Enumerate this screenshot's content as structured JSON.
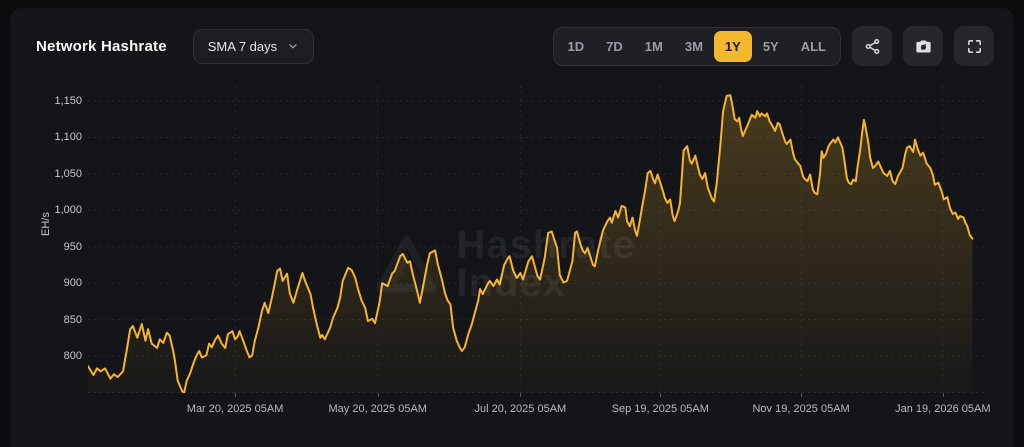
{
  "header": {
    "title": "Network Hashrate",
    "dropdown": {
      "selected": "SMA 7 days"
    },
    "ranges": [
      {
        "label": "1D",
        "active": false
      },
      {
        "label": "7D",
        "active": false
      },
      {
        "label": "1M",
        "active": false
      },
      {
        "label": "3M",
        "active": false
      },
      {
        "label": "1Y",
        "active": true
      },
      {
        "label": "5Y",
        "active": false
      },
      {
        "label": "ALL",
        "active": false
      }
    ],
    "icon_buttons": [
      "share-icon",
      "camera-icon",
      "fullscreen-icon"
    ]
  },
  "colors": {
    "accent": "#F2B92E",
    "line": "#F6B42C",
    "card_bg": "#141519",
    "page_bg": "#0a0b0d"
  },
  "watermark": {
    "line1": "Hashrate",
    "line2": "Index"
  },
  "chart_data": {
    "type": "line",
    "title": "Network Hashrate",
    "ylabel": "EH/s",
    "unit": "EH/s",
    "line_color": "#F6B42C",
    "fill_color": "#F0B42C",
    "grid": "dashed",
    "legend_position": "none",
    "ylim": [
      750,
      1170
    ],
    "y_axis": {
      "ticks": [
        800,
        850,
        900,
        950,
        1000,
        1050,
        1100,
        1150
      ]
    },
    "x_axis": {
      "note": "f = fractional position along the 1Y time axis",
      "ticks": [
        {
          "f": 0.164,
          "label": "Mar 20, 2025 05AM"
        },
        {
          "f": 0.323,
          "label": "May 20, 2025 05AM"
        },
        {
          "f": 0.482,
          "label": "Jul 20, 2025 05AM"
        },
        {
          "f": 0.638,
          "label": "Sep 19, 2025 05AM"
        },
        {
          "f": 0.795,
          "label": "Nov 19, 2025 05AM"
        },
        {
          "f": 0.953,
          "label": "Jan 19, 2026 05AM"
        }
      ]
    },
    "series": [
      {
        "name": "Network Hashrate (SMA 7 days), EH/s",
        "points": [
          [
            0.0,
            786
          ],
          [
            0.006,
            774
          ],
          [
            0.01,
            783
          ],
          [
            0.014,
            779
          ],
          [
            0.019,
            783
          ],
          [
            0.025,
            769
          ],
          [
            0.029,
            775
          ],
          [
            0.033,
            771
          ],
          [
            0.039,
            779
          ],
          [
            0.043,
            807
          ],
          [
            0.047,
            837
          ],
          [
            0.05,
            841
          ],
          [
            0.055,
            825
          ],
          [
            0.06,
            844
          ],
          [
            0.064,
            821
          ],
          [
            0.067,
            837
          ],
          [
            0.071,
            817
          ],
          [
            0.077,
            811
          ],
          [
            0.08,
            823
          ],
          [
            0.084,
            818
          ],
          [
            0.088,
            832
          ],
          [
            0.091,
            828
          ],
          [
            0.095,
            807
          ],
          [
            0.097,
            793
          ],
          [
            0.1,
            766
          ],
          [
            0.105,
            752
          ],
          [
            0.107,
            749
          ],
          [
            0.11,
            766
          ],
          [
            0.114,
            777
          ],
          [
            0.117,
            788
          ],
          [
            0.12,
            798
          ],
          [
            0.124,
            807
          ],
          [
            0.127,
            798
          ],
          [
            0.132,
            801
          ],
          [
            0.135,
            817
          ],
          [
            0.138,
            812
          ],
          [
            0.142,
            823
          ],
          [
            0.145,
            828
          ],
          [
            0.149,
            817
          ],
          [
            0.153,
            811
          ],
          [
            0.156,
            830
          ],
          [
            0.161,
            834
          ],
          [
            0.164,
            823
          ],
          [
            0.167,
            827
          ],
          [
            0.169,
            834
          ],
          [
            0.173,
            821
          ],
          [
            0.177,
            807
          ],
          [
            0.18,
            798
          ],
          [
            0.183,
            801
          ],
          [
            0.186,
            821
          ],
          [
            0.19,
            839
          ],
          [
            0.194,
            862
          ],
          [
            0.197,
            873
          ],
          [
            0.201,
            859
          ],
          [
            0.205,
            880
          ],
          [
            0.211,
            917
          ],
          [
            0.214,
            920
          ],
          [
            0.217,
            903
          ],
          [
            0.222,
            913
          ],
          [
            0.225,
            886
          ],
          [
            0.229,
            873
          ],
          [
            0.233,
            890
          ],
          [
            0.239,
            914
          ],
          [
            0.242,
            903
          ],
          [
            0.248,
            885
          ],
          [
            0.251,
            866
          ],
          [
            0.255,
            844
          ],
          [
            0.259,
            825
          ],
          [
            0.261,
            829
          ],
          [
            0.264,
            823
          ],
          [
            0.27,
            839
          ],
          [
            0.273,
            852
          ],
          [
            0.278,
            866
          ],
          [
            0.281,
            880
          ],
          [
            0.284,
            903
          ],
          [
            0.29,
            921
          ],
          [
            0.294,
            918
          ],
          [
            0.298,
            907
          ],
          [
            0.301,
            892
          ],
          [
            0.305,
            876
          ],
          [
            0.309,
            866
          ],
          [
            0.312,
            848
          ],
          [
            0.317,
            851
          ],
          [
            0.32,
            845
          ],
          [
            0.323,
            862
          ],
          [
            0.325,
            873
          ],
          [
            0.328,
            900
          ],
          [
            0.331,
            898
          ],
          [
            0.334,
            896
          ],
          [
            0.339,
            913
          ],
          [
            0.342,
            917
          ],
          [
            0.348,
            937
          ],
          [
            0.351,
            940
          ],
          [
            0.356,
            928
          ],
          [
            0.359,
            930
          ],
          [
            0.362,
            913
          ],
          [
            0.367,
            889
          ],
          [
            0.37,
            873
          ],
          [
            0.373,
            892
          ],
          [
            0.378,
            925
          ],
          [
            0.381,
            941
          ],
          [
            0.387,
            945
          ],
          [
            0.39,
            926
          ],
          [
            0.395,
            903
          ],
          [
            0.398,
            886
          ],
          [
            0.401,
            876
          ],
          [
            0.404,
            871
          ],
          [
            0.407,
            839
          ],
          [
            0.411,
            821
          ],
          [
            0.415,
            810
          ],
          [
            0.417,
            807
          ],
          [
            0.42,
            812
          ],
          [
            0.424,
            830
          ],
          [
            0.428,
            844
          ],
          [
            0.431,
            858
          ],
          [
            0.435,
            876
          ],
          [
            0.437,
            892
          ],
          [
            0.44,
            885
          ],
          [
            0.446,
            900
          ],
          [
            0.448,
            903
          ],
          [
            0.452,
            896
          ],
          [
            0.456,
            905
          ],
          [
            0.459,
            898
          ],
          [
            0.464,
            925
          ],
          [
            0.468,
            934
          ],
          [
            0.47,
            937
          ],
          [
            0.474,
            917
          ],
          [
            0.478,
            907
          ],
          [
            0.482,
            914
          ],
          [
            0.485,
            905
          ],
          [
            0.491,
            930
          ],
          [
            0.495,
            937
          ],
          [
            0.501,
            910
          ],
          [
            0.504,
            905
          ],
          [
            0.509,
            934
          ],
          [
            0.513,
            969
          ],
          [
            0.517,
            971
          ],
          [
            0.523,
            948
          ],
          [
            0.526,
            911
          ],
          [
            0.53,
            901
          ],
          [
            0.534,
            903
          ],
          [
            0.54,
            930
          ],
          [
            0.543,
            969
          ],
          [
            0.545,
            971
          ],
          [
            0.549,
            953
          ],
          [
            0.552,
            944
          ],
          [
            0.554,
            941
          ],
          [
            0.557,
            948
          ],
          [
            0.563,
            925
          ],
          [
            0.565,
            923
          ],
          [
            0.569,
            947
          ],
          [
            0.574,
            972
          ],
          [
            0.579,
            985
          ],
          [
            0.582,
            990
          ],
          [
            0.584,
            983
          ],
          [
            0.588,
            999
          ],
          [
            0.591,
            990
          ],
          [
            0.595,
            1006
          ],
          [
            0.599,
            1004
          ],
          [
            0.601,
            985
          ],
          [
            0.604,
            978
          ],
          [
            0.607,
            990
          ],
          [
            0.61,
            972
          ],
          [
            0.612,
            965
          ],
          [
            0.615,
            985
          ],
          [
            0.619,
            1013
          ],
          [
            0.621,
            1026
          ],
          [
            0.624,
            1051
          ],
          [
            0.627,
            1054
          ],
          [
            0.63,
            1043
          ],
          [
            0.632,
            1037
          ],
          [
            0.635,
            1049
          ],
          [
            0.641,
            1026
          ],
          [
            0.643,
            1017
          ],
          [
            0.646,
            1010
          ],
          [
            0.649,
            1015
          ],
          [
            0.652,
            992
          ],
          [
            0.654,
            985
          ],
          [
            0.658,
            999
          ],
          [
            0.66,
            1010
          ],
          [
            0.662,
            1045
          ],
          [
            0.664,
            1082
          ],
          [
            0.668,
            1088
          ],
          [
            0.671,
            1068
          ],
          [
            0.673,
            1064
          ],
          [
            0.677,
            1075
          ],
          [
            0.682,
            1049
          ],
          [
            0.685,
            1043
          ],
          [
            0.688,
            1051
          ],
          [
            0.691,
            1031
          ],
          [
            0.696,
            1015
          ],
          [
            0.698,
            1012
          ],
          [
            0.701,
            1038
          ],
          [
            0.705,
            1090
          ],
          [
            0.708,
            1136
          ],
          [
            0.712,
            1157
          ],
          [
            0.716,
            1158
          ],
          [
            0.718,
            1147
          ],
          [
            0.721,
            1125
          ],
          [
            0.724,
            1122
          ],
          [
            0.726,
            1127
          ],
          [
            0.728,
            1112
          ],
          [
            0.73,
            1102
          ],
          [
            0.735,
            1116
          ],
          [
            0.737,
            1122
          ],
          [
            0.74,
            1131
          ],
          [
            0.744,
            1127
          ],
          [
            0.746,
            1136
          ],
          [
            0.749,
            1129
          ],
          [
            0.751,
            1133
          ],
          [
            0.755,
            1129
          ],
          [
            0.757,
            1133
          ],
          [
            0.76,
            1122
          ],
          [
            0.763,
            1116
          ],
          [
            0.766,
            1109
          ],
          [
            0.769,
            1120
          ],
          [
            0.771,
            1118
          ],
          [
            0.775,
            1102
          ],
          [
            0.777,
            1095
          ],
          [
            0.779,
            1091
          ],
          [
            0.783,
            1097
          ],
          [
            0.786,
            1079
          ],
          [
            0.788,
            1070
          ],
          [
            0.792,
            1064
          ],
          [
            0.794,
            1061
          ],
          [
            0.797,
            1047
          ],
          [
            0.799,
            1043
          ],
          [
            0.802,
            1040
          ],
          [
            0.805,
            1049
          ],
          [
            0.808,
            1029
          ],
          [
            0.81,
            1024
          ],
          [
            0.813,
            1022
          ],
          [
            0.816,
            1050
          ],
          [
            0.818,
            1081
          ],
          [
            0.82,
            1072
          ],
          [
            0.823,
            1078
          ],
          [
            0.825,
            1086
          ],
          [
            0.827,
            1091
          ],
          [
            0.831,
            1097
          ],
          [
            0.833,
            1093
          ],
          [
            0.836,
            1100
          ],
          [
            0.841,
            1086
          ],
          [
            0.843,
            1070
          ],
          [
            0.846,
            1044
          ],
          [
            0.848,
            1038
          ],
          [
            0.851,
            1036
          ],
          [
            0.853,
            1042
          ],
          [
            0.856,
            1040
          ],
          [
            0.858,
            1060
          ],
          [
            0.861,
            1084
          ],
          [
            0.863,
            1106
          ],
          [
            0.865,
            1124
          ],
          [
            0.867,
            1113
          ],
          [
            0.87,
            1092
          ],
          [
            0.872,
            1072
          ],
          [
            0.875,
            1058
          ],
          [
            0.877,
            1060
          ],
          [
            0.881,
            1067
          ],
          [
            0.885,
            1056
          ],
          [
            0.887,
            1051
          ],
          [
            0.891,
            1047
          ],
          [
            0.894,
            1054
          ],
          [
            0.897,
            1040
          ],
          [
            0.9,
            1036
          ],
          [
            0.903,
            1047
          ],
          [
            0.908,
            1058
          ],
          [
            0.911,
            1077
          ],
          [
            0.913,
            1086
          ],
          [
            0.916,
            1088
          ],
          [
            0.92,
            1080
          ],
          [
            0.922,
            1097
          ],
          [
            0.925,
            1084
          ],
          [
            0.928,
            1075
          ],
          [
            0.931,
            1079
          ],
          [
            0.935,
            1064
          ],
          [
            0.939,
            1058
          ],
          [
            0.942,
            1048
          ],
          [
            0.944,
            1035
          ],
          [
            0.948,
            1038
          ],
          [
            0.952,
            1025
          ],
          [
            0.954,
            1015
          ],
          [
            0.958,
            1018
          ],
          [
            0.961,
            1003
          ],
          [
            0.964,
            995
          ],
          [
            0.967,
            997
          ],
          [
            0.97,
            988
          ],
          [
            0.972,
            992
          ],
          [
            0.976,
            990
          ],
          [
            0.978,
            983
          ],
          [
            0.98,
            979
          ],
          [
            0.983,
            966
          ],
          [
            0.986,
            961
          ]
        ]
      }
    ]
  }
}
